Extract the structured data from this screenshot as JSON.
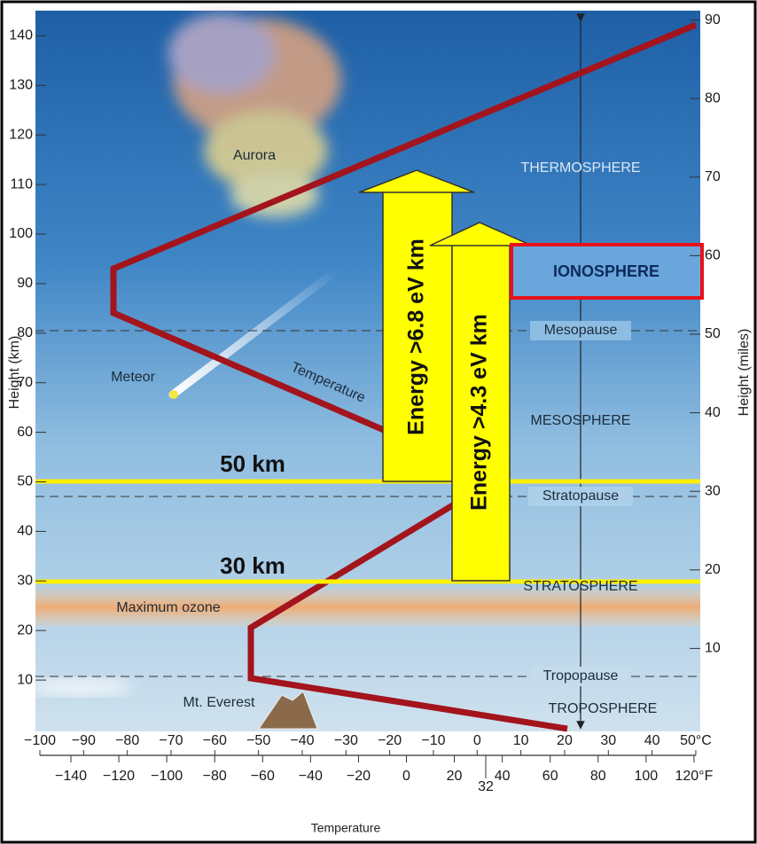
{
  "diagram": {
    "left_axis": {
      "label": "Height (km)",
      "ticks": [
        10,
        20,
        30,
        40,
        50,
        60,
        70,
        80,
        90,
        100,
        110,
        120,
        130,
        140
      ]
    },
    "right_axis": {
      "label": "Height (miles)",
      "ticks": [
        10,
        20,
        30,
        40,
        50,
        60,
        70,
        80,
        90
      ]
    },
    "bottom_axis": {
      "label": "Temperature",
      "celsius_ticks": [
        "−100",
        "−90",
        "−80",
        "−70",
        "−60",
        "−50",
        "−40",
        "−30",
        "−20",
        "−10",
        "0",
        "10",
        "20",
        "30",
        "40",
        "50°C"
      ],
      "fahrenheit_ticks": [
        "−140",
        "−120",
        "−100",
        "−80",
        "−60",
        "−40",
        "−20",
        "0",
        "20",
        "40",
        "60",
        "80",
        "100",
        "120°F"
      ],
      "freezing_label": "32"
    },
    "labels": {
      "aurora": "Aurora",
      "thermosphere": "THERMOSPHERE",
      "ionosphere": "IONOSPHERE",
      "mesopause": "Mesopause",
      "meteor": "Meteor",
      "temperature_curve": "Temperature",
      "mesosphere": "MESOSPHERE",
      "stratopause": "Stratopause",
      "stratosphere": "STRATOSPHERE",
      "maximum_ozone": "Maximum ozone",
      "tropopause": "Tropopause",
      "mt_everest": "Mt. Everest",
      "troposphere": "TROPOSPHERE",
      "line_50km": "50 km",
      "line_30km": "30 km",
      "energy_high": "Energy >6.8 eV km",
      "energy_low": "Energy >4.3 eV km"
    }
  }
}
